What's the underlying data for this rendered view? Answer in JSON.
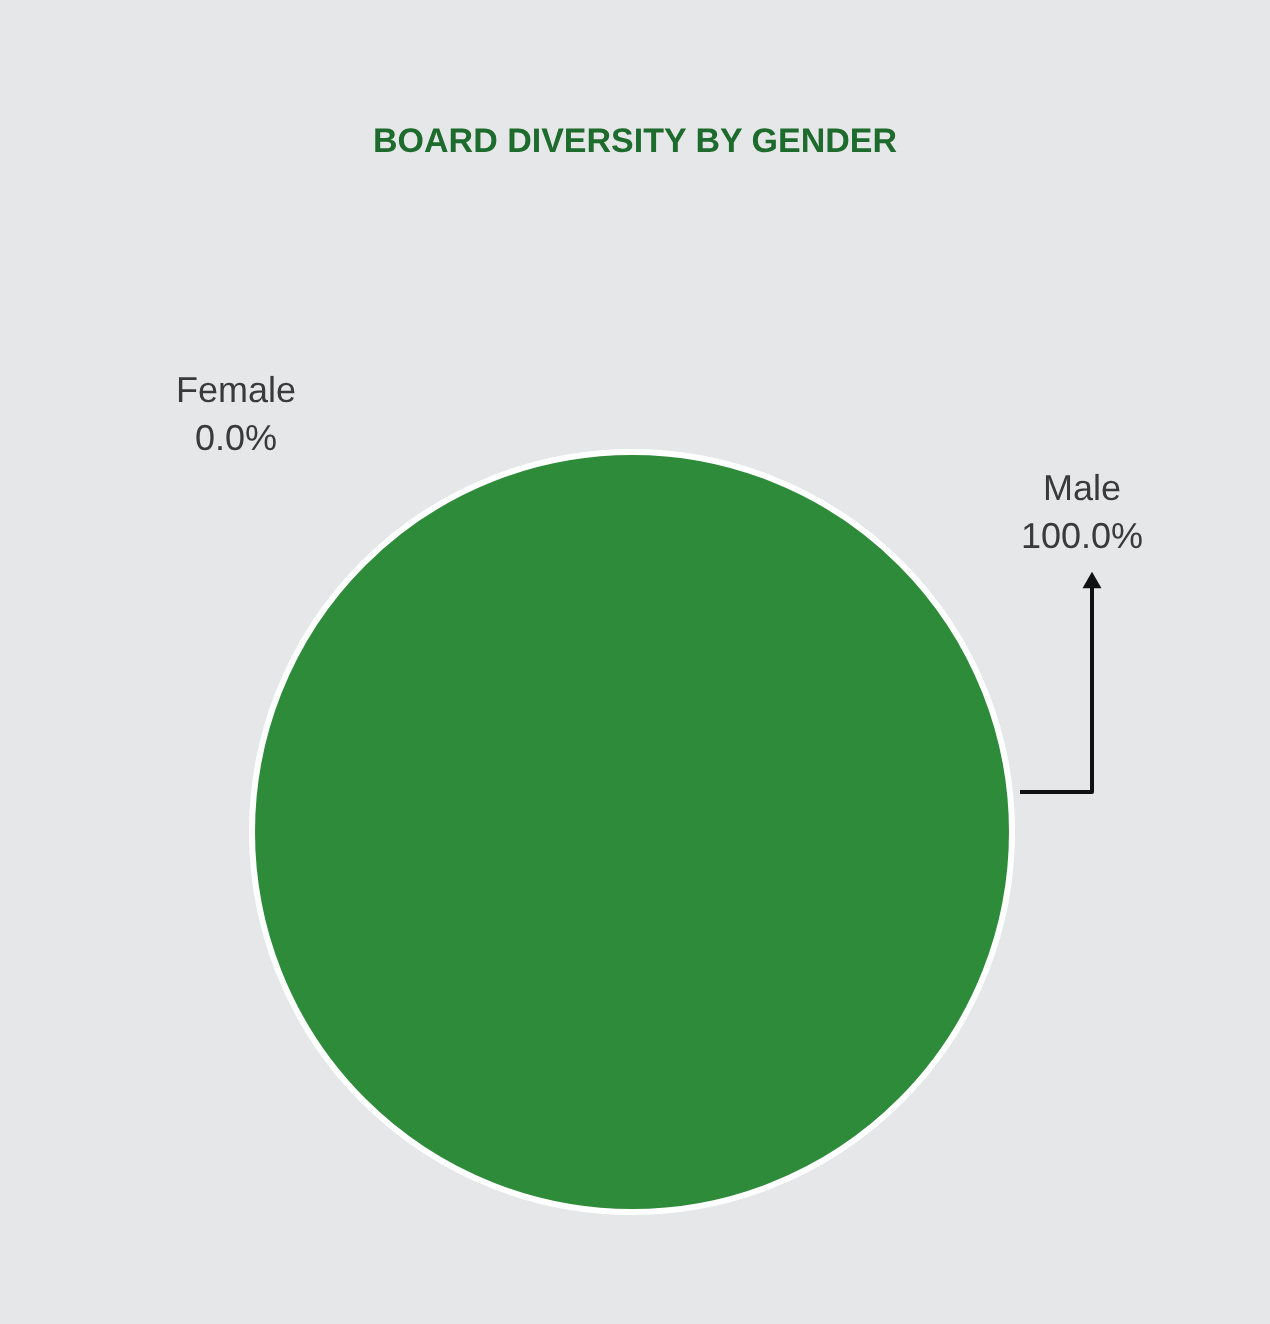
{
  "chart_data": {
    "type": "pie",
    "title": "BOARD DIVERSITY BY GENDER",
    "categories": [
      "Female",
      "Male"
    ],
    "values": [
      0,
      100
    ],
    "colors": [
      "#8dc63f",
      "#2e8b3a"
    ],
    "value_labels": [
      "0.0%",
      "100.0%"
    ],
    "legend": false
  }
}
